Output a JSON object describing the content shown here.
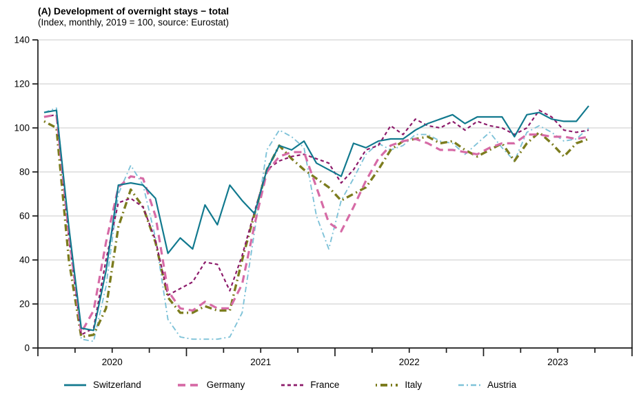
{
  "chart_data": {
    "type": "line",
    "title": "(A) Development of overnight stays − total",
    "subtitle": "(Index, monthly, 2019 = 100, source: Eurostat)",
    "x_axis": {
      "start": "2020-01",
      "end": "2023-09",
      "frequency": "monthly",
      "year_tick_labels": [
        "2020",
        "2021",
        "2022",
        "2023"
      ]
    },
    "y_axis": {
      "min": 0,
      "max": 140,
      "step": 20,
      "tick_labels": [
        "0",
        "20",
        "40",
        "60",
        "80",
        "100",
        "120",
        "140"
      ]
    },
    "grid": "horizontal",
    "legend_position": "bottom",
    "background_color": "#ffffff",
    "axis_color": "#1a1a1a",
    "grid_color": "#c9c9c9",
    "series": [
      {
        "name": "Switzerland",
        "color": "#11798e",
        "dash": "solid",
        "width": 2.2,
        "values": [
          107,
          108,
          55,
          9,
          8,
          35,
          74,
          75,
          74,
          68,
          43,
          50,
          45,
          65,
          56,
          74,
          67,
          61,
          81,
          92,
          90,
          94,
          84,
          81,
          78,
          93,
          91,
          94,
          95,
          95,
          99,
          102,
          104,
          106,
          102,
          105,
          105,
          105,
          96,
          106,
          107,
          104,
          103,
          103,
          110
        ]
      },
      {
        "name": "Germany",
        "color": "#d66ba6",
        "dash": "11,7",
        "width": 3.2,
        "values": [
          105,
          106,
          52,
          7,
          17,
          48,
          73,
          78,
          77,
          60,
          26,
          18,
          17,
          21,
          18,
          18,
          29,
          56,
          80,
          87,
          89,
          89,
          73,
          57,
          53,
          64,
          76,
          86,
          92,
          94,
          95,
          93,
          90,
          90,
          89,
          88,
          91,
          93,
          93,
          97,
          97,
          96,
          96,
          95,
          96
        ]
      },
      {
        "name": "France",
        "color": "#8c1a6a",
        "dash": "5,4",
        "width": 2.2,
        "values": [
          105,
          106,
          50,
          6,
          9,
          40,
          66,
          68,
          64,
          49,
          24,
          27,
          30,
          39,
          38,
          26,
          42,
          62,
          81,
          85,
          87,
          88,
          86,
          84,
          75,
          81,
          90,
          92,
          101,
          97,
          104,
          101,
          100,
          103,
          99,
          103,
          101,
          100,
          97,
          100,
          108,
          105,
          99,
          98,
          99
        ]
      },
      {
        "name": "Italy",
        "color": "#7c7c1e",
        "dash": "2,5,10,5",
        "width": 3.4,
        "values": [
          103,
          100,
          40,
          5,
          6,
          18,
          55,
          72,
          64,
          48,
          23,
          16,
          16,
          19,
          17,
          17,
          40,
          61,
          81,
          92,
          86,
          81,
          77,
          73,
          67,
          70,
          73,
          81,
          90,
          94,
          95,
          96,
          93,
          94,
          90,
          87,
          90,
          93,
          85,
          93,
          98,
          93,
          87,
          93,
          95
        ]
      },
      {
        "name": "Austria",
        "color": "#7ec2d8",
        "dash": "8,4,2,4",
        "width": 1.9,
        "values": [
          107,
          109,
          52,
          4,
          3,
          28,
          70,
          83,
          74,
          50,
          13,
          5,
          4,
          4,
          4,
          5,
          16,
          53,
          90,
          99,
          96,
          91,
          60,
          45,
          67,
          77,
          88,
          93,
          90,
          92,
          97,
          97,
          94,
          93,
          88,
          93,
          98,
          91,
          85,
          98,
          101,
          98,
          94,
          95,
          100
        ]
      }
    ]
  }
}
